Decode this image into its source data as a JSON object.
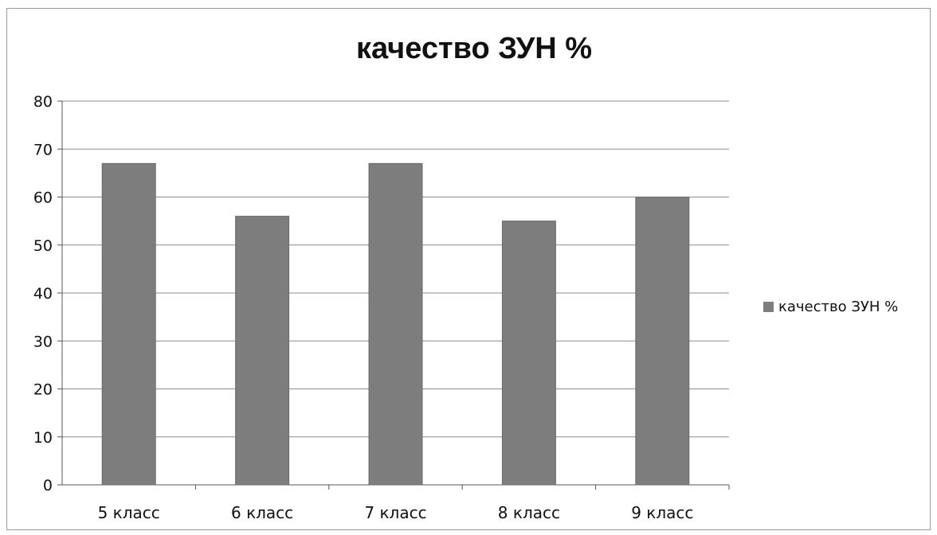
{
  "chart_data": {
    "type": "bar",
    "title": "качество ЗУН %",
    "categories": [
      "5 класс",
      "6 класс",
      "7 класс",
      "8 класс",
      "9 класс"
    ],
    "series": [
      {
        "name": "качество ЗУН %",
        "values": [
          67,
          56,
          67,
          55,
          60
        ],
        "color": "#7d7d7d"
      }
    ],
    "ylim": [
      0,
      80
    ],
    "yticks": [
      0,
      10,
      20,
      30,
      40,
      50,
      60,
      70,
      80
    ],
    "grid": true,
    "legend_position": "right"
  }
}
